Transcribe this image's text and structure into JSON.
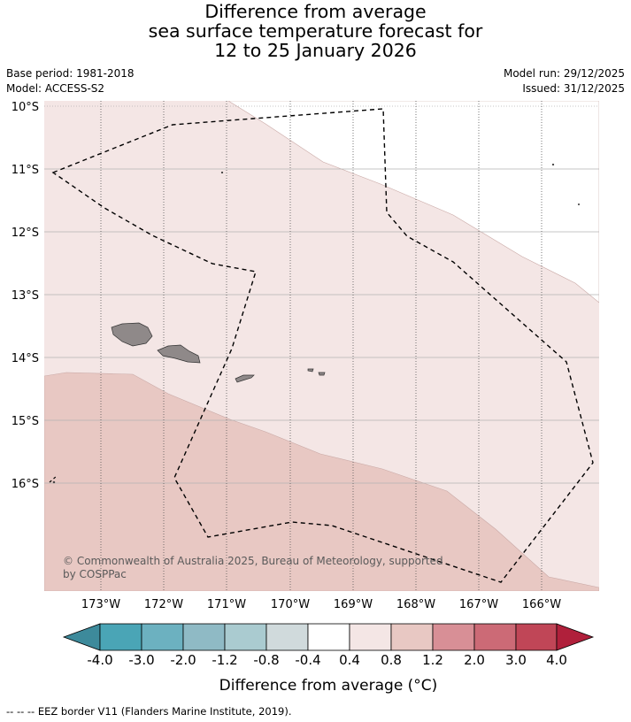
{
  "header": {
    "title_line1": "Difference from average",
    "title_line2": "sea surface temperature forecast for",
    "title_line3": "12 to 25 January 2026",
    "base_period": "Base period: 1981-2018",
    "model": "Model: ACCESS-S2",
    "model_run": "Model run: 29/12/2025",
    "issued": "Issued: 31/12/2025"
  },
  "map": {
    "lat_labels": [
      "10°S",
      "11°S",
      "12°S",
      "13°S",
      "14°S",
      "15°S",
      "16°S"
    ],
    "lon_labels": [
      "173°W",
      "172°W",
      "171°W",
      "170°W",
      "169°W",
      "168°W",
      "167°W",
      "166°W"
    ],
    "copyright_line1": "© Commonwealth of Australia 2025, Bureau of Meteorology, supported",
    "copyright_line2": "by COSPPac",
    "region_colors": {
      "band_0.4_0.8": "#f4e6e5",
      "band_0.8_1.2": "#e8c8c3",
      "land": "#8f8989"
    }
  },
  "colorbar": {
    "tick_labels": [
      "-4.0",
      "-3.0",
      "-2.0",
      "-1.2",
      "-0.8",
      "-0.4",
      "0.4",
      "0.8",
      "1.2",
      "2.0",
      "3.0",
      "4.0"
    ],
    "colors": [
      "#3d8a9b",
      "#4aa5b6",
      "#6cb1c0",
      "#8fbac5",
      "#aacbd0",
      "#d0dadc",
      "#ffffff",
      "#f4e6e5",
      "#e8c8c3",
      "#d88f96",
      "#cc6a76",
      "#c04657",
      "#b0203b"
    ],
    "label": "Difference from average (°C)"
  },
  "footnote": "--  --  -- EEZ border V11 (Flanders Marine Institute, 2019)."
}
